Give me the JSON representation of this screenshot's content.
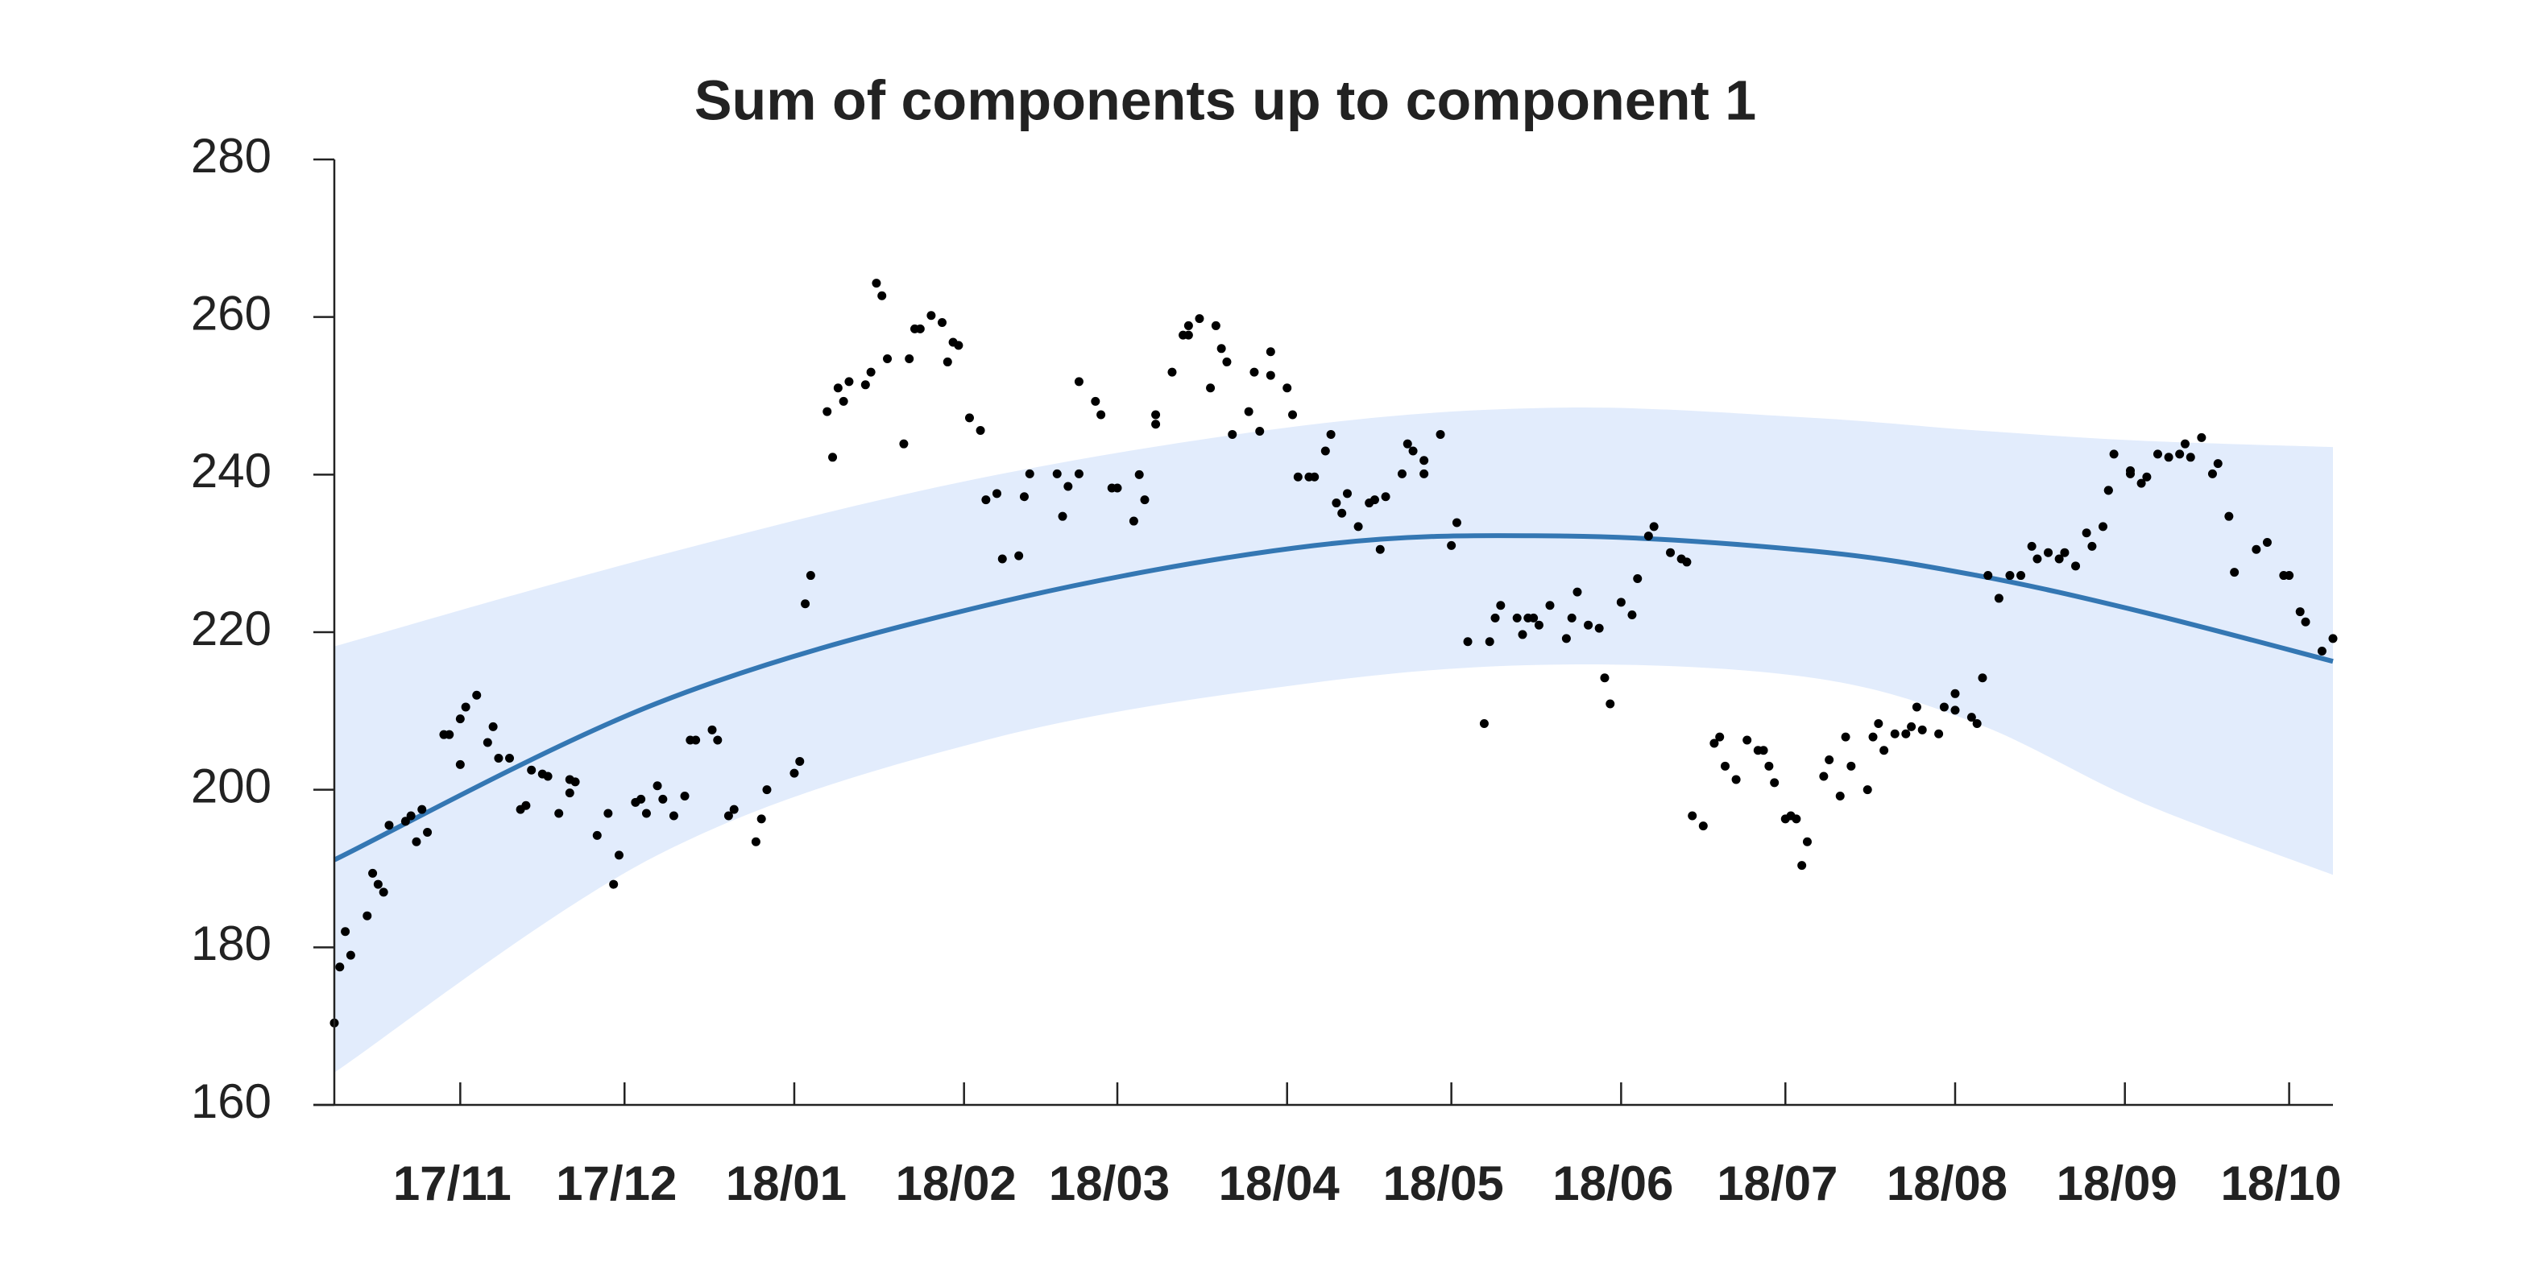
{
  "chart_data": {
    "type": "scatter",
    "title": "Sum of components up to component 1",
    "x": [
      0,
      1,
      2,
      3,
      6,
      7,
      8,
      9,
      10,
      13,
      14,
      15,
      16,
      17,
      20,
      21,
      23,
      23,
      24,
      26,
      28,
      29,
      30,
      32,
      34,
      35,
      36,
      38,
      39,
      41,
      43,
      43,
      44,
      48,
      50,
      51,
      52,
      55,
      56,
      57,
      59,
      60,
      62,
      64,
      65,
      66,
      69,
      70,
      72,
      73,
      77,
      78,
      79,
      84,
      85,
      86,
      87,
      90,
      91,
      92,
      93,
      94,
      97,
      98,
      99,
      100,
      101,
      104,
      105,
      106,
      107,
      109,
      111,
      112,
      113,
      114,
      116,
      118,
      119,
      121,
      122,
      125,
      126,
      127,
      132,
      133,
      134,
      136,
      136,
      139,
      140,
      142,
      143,
      146,
      147,
      148,
      150,
      150,
      153,
      155,
      156,
      156,
      158,
      160,
      161,
      162,
      163,
      164,
      167,
      168,
      169,
      171,
      171,
      174,
      175,
      176,
      178,
      179,
      181,
      182,
      183,
      184,
      185,
      187,
      189,
      190,
      191,
      192,
      195,
      196,
      197,
      199,
      199,
      202,
      204,
      205,
      207,
      210,
      211,
      212,
      213,
      216,
      217,
      218,
      219,
      220,
      222,
      225,
      226,
      227,
      229,
      231,
      232,
      233,
      235,
      237,
      238,
      240,
      241,
      244,
      246,
      247,
      248,
      250,
      252,
      253,
      254,
      256,
      258,
      260,
      261,
      262,
      263,
      265,
      266,
      267,
      268,
      269,
      272,
      273,
      275,
      276,
      277,
      280,
      281,
      282,
      283,
      285,
      287,
      288,
      289,
      290,
      293,
      294,
      296,
      296,
      299,
      300,
      301,
      302,
      304,
      306,
      308,
      310,
      311,
      313,
      315,
      316,
      318,
      320,
      321,
      323,
      324,
      324,
      325,
      328,
      328,
      330,
      331,
      333,
      335,
      337,
      338,
      339,
      341,
      343,
      344,
      346,
      347,
      351,
      353,
      356,
      357,
      359,
      360,
      363,
      365
    ],
    "values": [
      170.4,
      177.5,
      182,
      179,
      184,
      189.4,
      188,
      187,
      195.5,
      196,
      196.7,
      193.4,
      197.5,
      194.6,
      207,
      207,
      203.2,
      209,
      210.5,
      212,
      206,
      208,
      204,
      204,
      197.5,
      198,
      202.5,
      202,
      201.7,
      197,
      199.6,
      201.3,
      201,
      194.2,
      197,
      188,
      191.7,
      198.4,
      198.8,
      197,
      200.5,
      198.8,
      196.7,
      199.2,
      206.3,
      206.3,
      207.6,
      206.3,
      196.7,
      197.5,
      193.4,
      196.3,
      200,
      202.1,
      203.6,
      223.6,
      227.2,
      248,
      242.2,
      251,
      249.3,
      251.8,
      251.4,
      253,
      264.3,
      262.7,
      254.7,
      243.9,
      254.7,
      258.5,
      258.5,
      260.2,
      259.3,
      254.3,
      256.8,
      256.4,
      247.2,
      245.6,
      236.8,
      237.6,
      229.3,
      229.7,
      237.2,
      240.1,
      240.1,
      234.7,
      238.5,
      240.1,
      251.8,
      249.3,
      247.6,
      238.3,
      238.3,
      234.1,
      240,
      236.8,
      246.4,
      247.6,
      253,
      257.7,
      257.7,
      258.9,
      259.8,
      251,
      258.9,
      256,
      254.3,
      245.1,
      248,
      253,
      245.5,
      252.6,
      255.6,
      251,
      247.6,
      239.7,
      239.7,
      239.7,
      243,
      245.1,
      236.4,
      235.1,
      237.6,
      233.4,
      236.4,
      236.8,
      230.5,
      237.2,
      240.1,
      243.9,
      243,
      240.1,
      241.8,
      245.1,
      231,
      233.9,
      218.8,
      208.4,
      218.8,
      221.8,
      223.4,
      221.8,
      219.7,
      221.8,
      221.8,
      220.9,
      223.4,
      219.2,
      221.8,
      225.1,
      220.9,
      220.5,
      214.2,
      210.9,
      223.8,
      222.2,
      226.8,
      232.2,
      233.4,
      230.1,
      229.3,
      228.9,
      196.7,
      195.4,
      205.9,
      206.7,
      203,
      201.3,
      206.3,
      205,
      205,
      203,
      200.9,
      196.3,
      196.7,
      196.3,
      190.4,
      193.4,
      201.7,
      203.8,
      199.2,
      206.7,
      203,
      200,
      206.7,
      208.4,
      205,
      207.1,
      207.1,
      208,
      210.5,
      207.6,
      207.1,
      210.5,
      212.2,
      210.1,
      209.2,
      208.4,
      214.2,
      227.2,
      224.3,
      227.2,
      227.2,
      230.9,
      229.3,
      230.1,
      229.3,
      230.1,
      228.4,
      232.6,
      230.9,
      233.4,
      238,
      238,
      242.6,
      240.1,
      240.5,
      238.9,
      239.7,
      242.6,
      242.2,
      242.6,
      243.9,
      242.2,
      244.7,
      240.1,
      241.4,
      234.7,
      227.6,
      230.5,
      231.4,
      227.2,
      227.2,
      222.6,
      221.3,
      217.6,
      219.2
    ],
    "color": "#000000",
    "fit": {
      "x": [
        0,
        59,
        119,
        179,
        225,
        270,
        300,
        330,
        365
      ],
      "values": [
        191.1,
        211,
        223.4,
        231,
        232.2,
        230.3,
        227.2,
        222.6,
        216.3
      ],
      "upper": [
        218.2,
        229.7,
        239.7,
        246.4,
        248.5,
        247.2,
        245.6,
        244.3,
        243.5
      ],
      "lower": [
        164.1,
        191.7,
        206.3,
        213.6,
        215.9,
        214.2,
        208.4,
        198.4,
        189.2
      ],
      "color": "#3477b3",
      "band_color": "#e2ecfc"
    },
    "xlim": [
      0,
      365
    ],
    "ylim": [
      160,
      280
    ],
    "yticks": [
      160,
      180,
      200,
      220,
      240,
      260,
      280
    ],
    "xticks": [
      {
        "value": 23,
        "label": "17/11"
      },
      {
        "value": 53,
        "label": "17/12"
      },
      {
        "value": 84,
        "label": "18/01"
      },
      {
        "value": 115,
        "label": "18/02"
      },
      {
        "value": 143,
        "label": "18/03"
      },
      {
        "value": 174,
        "label": "18/04"
      },
      {
        "value": 204,
        "label": "18/05"
      },
      {
        "value": 235,
        "label": "18/06"
      },
      {
        "value": 265,
        "label": "18/07"
      },
      {
        "value": 296,
        "label": "18/08"
      },
      {
        "value": 327,
        "label": "18/09"
      },
      {
        "value": 357,
        "label": "18/10"
      }
    ],
    "grid": false
  }
}
